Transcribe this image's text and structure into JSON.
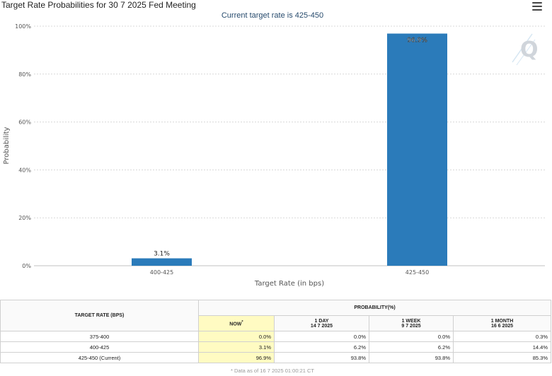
{
  "header": {
    "title": "Target Rate Probabilities for 30 7 2025 Fed Meeting",
    "subtitle": "Current target rate is 425-450",
    "menu_icon": "hamburger-menu-icon",
    "watermark_icon": "q-logo-icon"
  },
  "chart_data": {
    "type": "bar",
    "title": "Target Rate Probabilities for 30 7 2025 Fed Meeting",
    "subtitle": "Current target rate is 425-450",
    "categories": [
      "400-425",
      "425-450"
    ],
    "values": [
      3.1,
      96.9
    ],
    "data_labels": [
      "3.1%",
      "96.9%"
    ],
    "xlabel": "Target Rate (in bps)",
    "ylabel": "Probability",
    "ylim": [
      0,
      100
    ],
    "yticks": [
      0,
      20,
      40,
      60,
      80,
      100
    ],
    "ytick_labels": [
      "0%",
      "20%",
      "40%",
      "60%",
      "80%",
      "100%"
    ],
    "grid": true,
    "bar_color": "#2b7bba"
  },
  "table": {
    "target_rate_header": "TARGET RATE (BPS)",
    "probability_header": "PROBABILITY(%)",
    "columns": [
      {
        "label": "NOW",
        "sup": "*",
        "date": ""
      },
      {
        "label": "1 DAY",
        "date": "14 7 2025"
      },
      {
        "label": "1 WEEK",
        "date": "9 7 2025"
      },
      {
        "label": "1 MONTH",
        "date": "16 6 2025"
      }
    ],
    "rows": [
      {
        "rate": "375-400",
        "now": "0.0%",
        "day": "0.0%",
        "week": "0.0%",
        "month": "0.3%"
      },
      {
        "rate": "400-425",
        "now": "3.1%",
        "day": "6.2%",
        "week": "6.2%",
        "month": "14.4%"
      },
      {
        "rate": "425-450 (Current)",
        "now": "96.9%",
        "day": "93.8%",
        "week": "93.8%",
        "month": "85.3%"
      }
    ],
    "now_highlight_color": "#fffbc2"
  },
  "footnote": "* Data as of 16 7 2025 01:00:21 CT"
}
